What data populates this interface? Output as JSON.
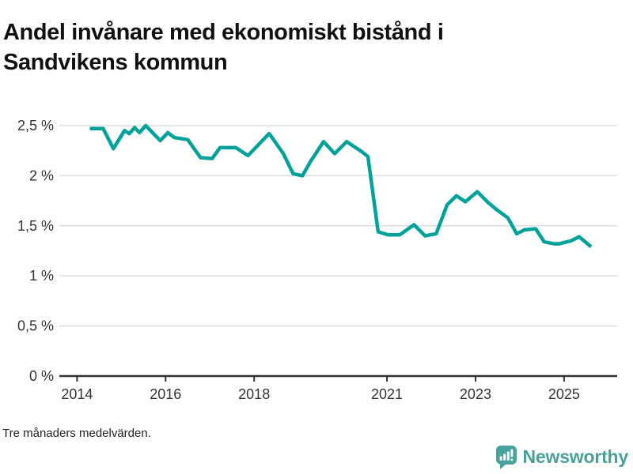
{
  "title": "Andel invånare med ekonomiskt bistånd i Sandvikens kommun",
  "footnote": "Tre månaders medelvärden.",
  "branding": {
    "logo_text": "Newsworthy",
    "logo_icon": "speech-bubble-bar-chart-icon",
    "logo_color": "#47A29C"
  },
  "colors": {
    "line": "#00A29B",
    "grid": "#DDDDDD",
    "axis": "#333333",
    "tick_text": "#333333",
    "title_text": "#111111"
  },
  "chart_data": {
    "type": "line",
    "title": "Andel invånare med ekonomiskt bistånd i Sandvikens kommun",
    "xlabel": "",
    "ylabel": "",
    "xlim": [
      2013.6,
      2026.2
    ],
    "ylim": [
      0,
      2.5
    ],
    "grid": "horizontal",
    "legend": "none",
    "x_ticks": {
      "values": [
        2014,
        2016,
        2018,
        2021,
        2023,
        2025
      ],
      "labels": [
        "2014",
        "2016",
        "2018",
        "2021",
        "2023",
        "2025"
      ]
    },
    "y_ticks": {
      "values": [
        0,
        0.5,
        1,
        1.5,
        2,
        2.5
      ],
      "labels": [
        "0 %",
        "0,5 %",
        "1 %",
        "1,5 %",
        "2 %",
        "2,5 %"
      ]
    },
    "series": [
      {
        "name": "Andel invånare med ekonomiskt bistånd, Sandvikens kommun (%)",
        "points": [
          [
            2014.29,
            2.47
          ],
          [
            2014.59,
            2.47
          ],
          [
            2014.82,
            2.27
          ],
          [
            2015.07,
            2.45
          ],
          [
            2015.18,
            2.42
          ],
          [
            2015.3,
            2.48
          ],
          [
            2015.41,
            2.43
          ],
          [
            2015.55,
            2.5
          ],
          [
            2015.88,
            2.35
          ],
          [
            2016.05,
            2.43
          ],
          [
            2016.2,
            2.38
          ],
          [
            2016.5,
            2.36
          ],
          [
            2016.79,
            2.18
          ],
          [
            2017.05,
            2.17
          ],
          [
            2017.23,
            2.28
          ],
          [
            2017.59,
            2.28
          ],
          [
            2017.86,
            2.2
          ],
          [
            2018.34,
            2.42
          ],
          [
            2018.66,
            2.22
          ],
          [
            2018.88,
            2.02
          ],
          [
            2019.09,
            2.0
          ],
          [
            2019.27,
            2.14
          ],
          [
            2019.57,
            2.34
          ],
          [
            2019.82,
            2.22
          ],
          [
            2020.09,
            2.34
          ],
          [
            2020.43,
            2.24
          ],
          [
            2020.57,
            2.19
          ],
          [
            2020.8,
            1.44
          ],
          [
            2021.02,
            1.41
          ],
          [
            2021.29,
            1.41
          ],
          [
            2021.61,
            1.51
          ],
          [
            2021.86,
            1.4
          ],
          [
            2022.11,
            1.42
          ],
          [
            2022.36,
            1.71
          ],
          [
            2022.57,
            1.8
          ],
          [
            2022.77,
            1.74
          ],
          [
            2023.04,
            1.84
          ],
          [
            2023.29,
            1.73
          ],
          [
            2023.48,
            1.66
          ],
          [
            2023.73,
            1.58
          ],
          [
            2023.93,
            1.42
          ],
          [
            2024.11,
            1.46
          ],
          [
            2024.36,
            1.47
          ],
          [
            2024.55,
            1.34
          ],
          [
            2024.77,
            1.32
          ],
          [
            2024.89,
            1.32
          ],
          [
            2025.16,
            1.35
          ],
          [
            2025.34,
            1.39
          ],
          [
            2025.61,
            1.29
          ]
        ]
      }
    ]
  }
}
